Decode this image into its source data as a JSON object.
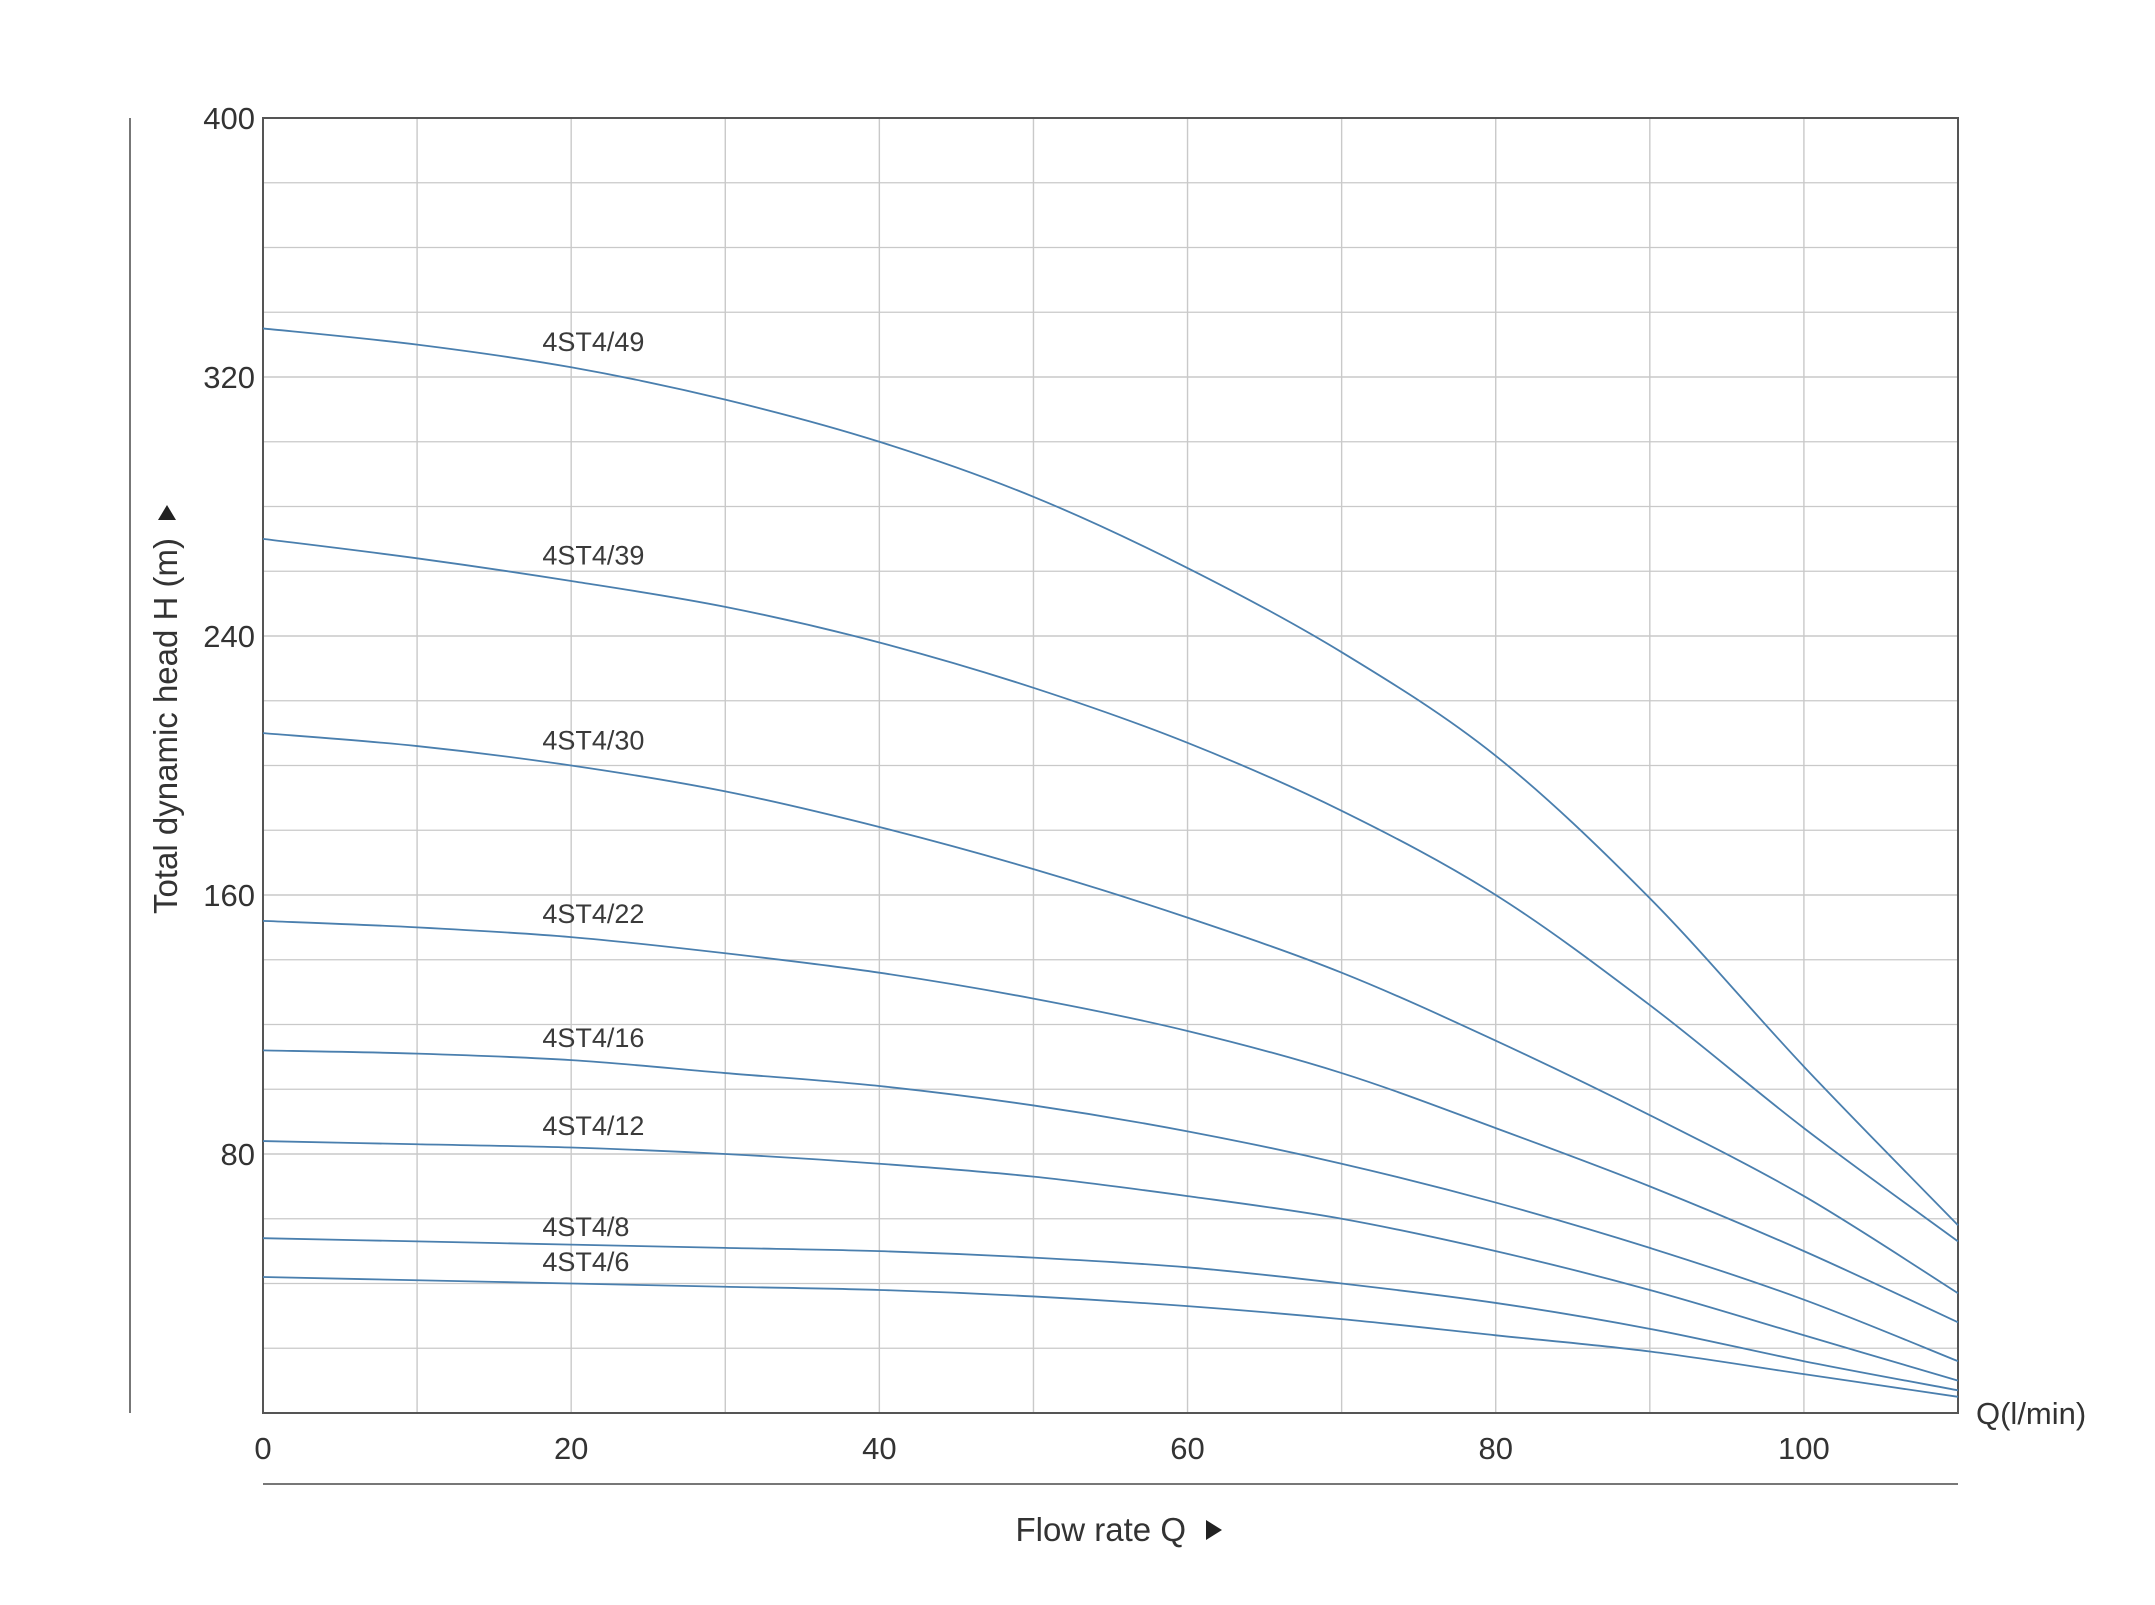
{
  "chart_data": {
    "type": "line",
    "title": "",
    "xlabel": "Flow rate Q",
    "ylabel": "Total dynamic head H (m)",
    "x_unit_label": "Q(l/min)",
    "xlim": [
      0,
      110
    ],
    "ylim": [
      0,
      400
    ],
    "x_ticks": [
      "0",
      "20",
      "40",
      "60",
      "80",
      "100"
    ],
    "y_ticks": [
      "80",
      "160",
      "240",
      "320",
      "400"
    ],
    "grid": true,
    "line_color": "#4a7fae",
    "grid_color": "#c9c9c9",
    "x": [
      0,
      10,
      20,
      30,
      40,
      50,
      60,
      70,
      80,
      90,
      100,
      110
    ],
    "series": [
      {
        "name": "4ST4/49",
        "values": [
          335,
          330,
          323,
          313,
          300,
          283,
          261,
          235,
          203,
          159,
          107,
          58
        ]
      },
      {
        "name": "4ST4/39",
        "values": [
          270,
          264,
          257,
          249,
          238,
          224,
          207,
          186,
          160,
          126,
          88,
          53
        ]
      },
      {
        "name": "4ST4/30",
        "values": [
          210,
          206,
          200,
          192,
          181,
          168,
          153,
          136,
          115,
          92,
          67,
          37
        ]
      },
      {
        "name": "4ST4/22",
        "values": [
          152,
          150,
          147,
          142,
          136,
          128,
          118,
          105,
          88,
          70,
          50,
          28
        ]
      },
      {
        "name": "4ST4/16",
        "values": [
          112,
          111,
          109,
          105,
          101,
          95,
          87,
          77,
          65,
          51,
          35,
          16
        ]
      },
      {
        "name": "4ST4/12",
        "values": [
          84,
          83,
          82,
          80,
          77,
          73,
          67,
          60,
          50,
          38,
          24,
          10
        ]
      },
      {
        "name": "4ST4/8",
        "values": [
          54,
          53,
          52,
          51,
          50,
          48,
          45,
          40,
          34,
          26,
          16,
          7
        ]
      },
      {
        "name": "4ST4/6",
        "values": [
          42,
          41,
          40,
          39,
          38,
          36,
          33,
          29,
          24,
          19,
          12,
          5
        ]
      }
    ],
    "label_x": 18
  }
}
